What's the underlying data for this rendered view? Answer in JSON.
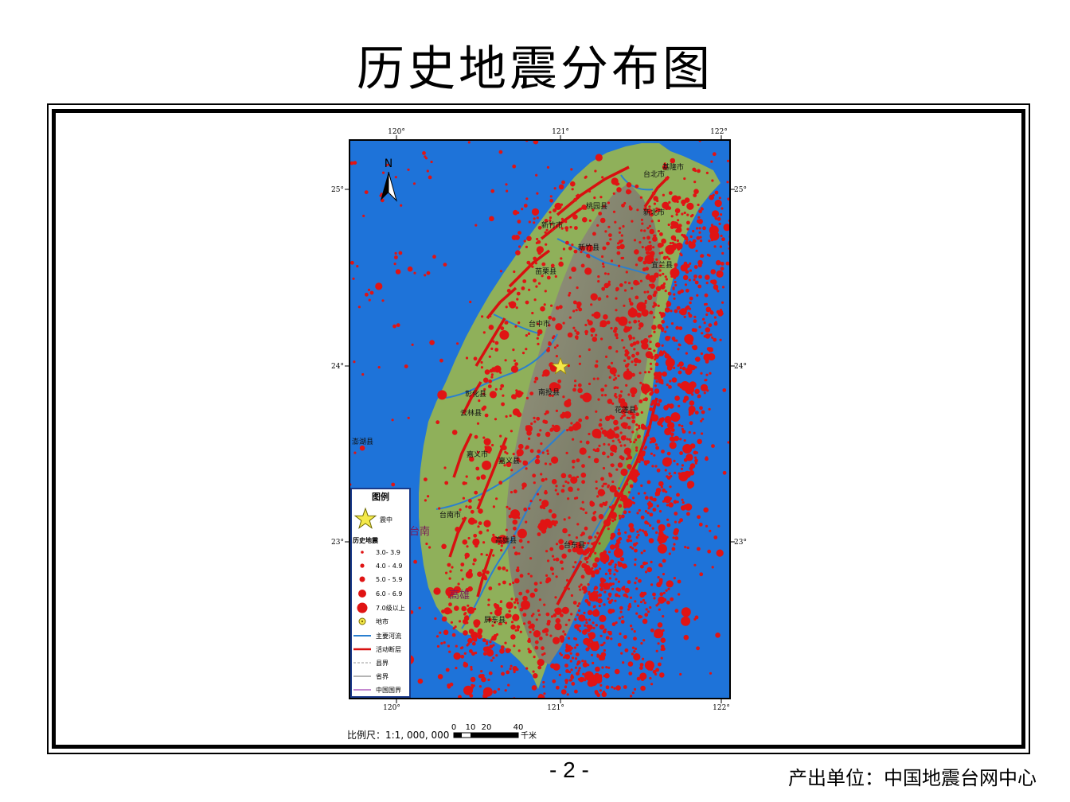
{
  "title": "历史地震分布图",
  "page_number": "- 2 -",
  "producer": "产出单位：中国地震台网中心",
  "map": {
    "lon_ticks": [
      "120°",
      "121°",
      "122°"
    ],
    "lat_ticks": [
      "25°",
      "24°",
      "23°"
    ],
    "north_label": "N",
    "scale_label": "比例尺：1:1, 000, 000",
    "scale_ticks": [
      "0",
      "10",
      "20",
      "40"
    ],
    "scale_unit": "千米",
    "colors": {
      "sea": "#1e73d9",
      "land": "#8fb05a",
      "mountain": "#8a8a72",
      "quake": "#e01414",
      "fault": "#d81010",
      "river": "#2a7fd0"
    },
    "place_labels": [
      "基隆市",
      "台北市",
      "桃园县",
      "新北市",
      "新竹市",
      "新竹县",
      "苗栗县",
      "宜兰县",
      "台中市",
      "彰化县",
      "南投县",
      "花莲县",
      "云林县",
      "嘉义市",
      "嘉义县",
      "澎湖县",
      "台南市",
      "台南",
      "高雄县",
      "台东县",
      "高雄",
      "屏东县"
    ],
    "legend": {
      "title": "图例",
      "epicenter": "震中",
      "history_title": "历史地震",
      "magnitudes": [
        "3.0- 3.9",
        "4.0 - 4.9",
        "5.0 - 5.9",
        "6.0 - 6.9",
        "7.0级以上"
      ],
      "city": "地市",
      "river": "主要河流",
      "fault": "活动断层",
      "county": "县界",
      "province": "省界",
      "national": "中国国界"
    }
  }
}
